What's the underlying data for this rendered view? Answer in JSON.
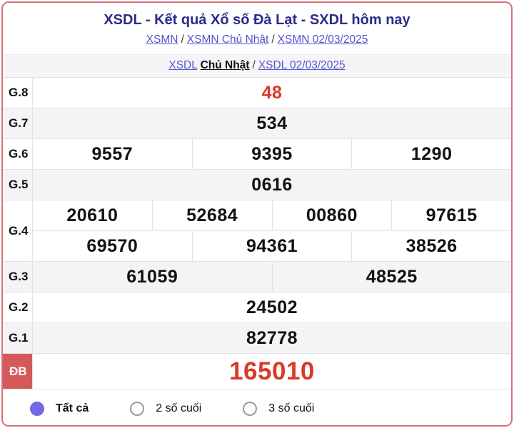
{
  "header": {
    "title": "XSDL - Kết quả Xổ số Đà Lạt - SXDL hôm nay",
    "breadcrumb1": {
      "links": [
        "XSMN",
        "XSMN Chủ Nhật",
        "XSMN 02/03/2025"
      ],
      "separator": "/"
    },
    "breadcrumb2": {
      "link_prefix": "XSDL",
      "static_part": "Chủ Nhật",
      "separator": "/",
      "link_date": "XSDL 02/03/2025"
    }
  },
  "results": {
    "rows": [
      {
        "id": "g8",
        "label": "G.8",
        "shade": false,
        "red": true,
        "big": false,
        "lines": [
          [
            "48"
          ]
        ]
      },
      {
        "id": "g7",
        "label": "G.7",
        "shade": true,
        "red": false,
        "big": false,
        "lines": [
          [
            "534"
          ]
        ]
      },
      {
        "id": "g6",
        "label": "G.6",
        "shade": false,
        "red": false,
        "big": false,
        "lines": [
          [
            "9557",
            "9395",
            "1290"
          ]
        ]
      },
      {
        "id": "g5",
        "label": "G.5",
        "shade": true,
        "red": false,
        "big": false,
        "lines": [
          [
            "0616"
          ]
        ]
      },
      {
        "id": "g4",
        "label": "G.4",
        "shade": false,
        "red": false,
        "big": false,
        "lines": [
          [
            "20610",
            "52684",
            "00860",
            "97615"
          ],
          [
            "69570",
            "94361",
            "38526"
          ]
        ]
      },
      {
        "id": "g3",
        "label": "G.3",
        "shade": true,
        "red": false,
        "big": false,
        "lines": [
          [
            "61059",
            "48525"
          ]
        ]
      },
      {
        "id": "g2",
        "label": "G.2",
        "shade": false,
        "red": false,
        "big": false,
        "lines": [
          [
            "24502"
          ]
        ]
      },
      {
        "id": "g1",
        "label": "G.1",
        "shade": true,
        "red": false,
        "big": false,
        "lines": [
          [
            "82778"
          ]
        ]
      },
      {
        "id": "db",
        "label": "ĐB",
        "shade": false,
        "red": true,
        "big": true,
        "special": true,
        "lines": [
          [
            "165010"
          ]
        ]
      }
    ]
  },
  "filter": {
    "options": [
      {
        "label": "Tất cả",
        "selected": true
      },
      {
        "label": "2 số cuối",
        "selected": false
      },
      {
        "label": "3 số cuối",
        "selected": false
      }
    ]
  },
  "colors": {
    "frame_border": "#d97179",
    "title_navy": "#2b2b8a",
    "link_blue": "#5553d1",
    "value_red": "#d93a27",
    "special_label_bg": "#d45a5a",
    "shade_row": "#f4f4f6",
    "cell_border": "#e3e3e3",
    "radio_selected": "#716ae3"
  }
}
